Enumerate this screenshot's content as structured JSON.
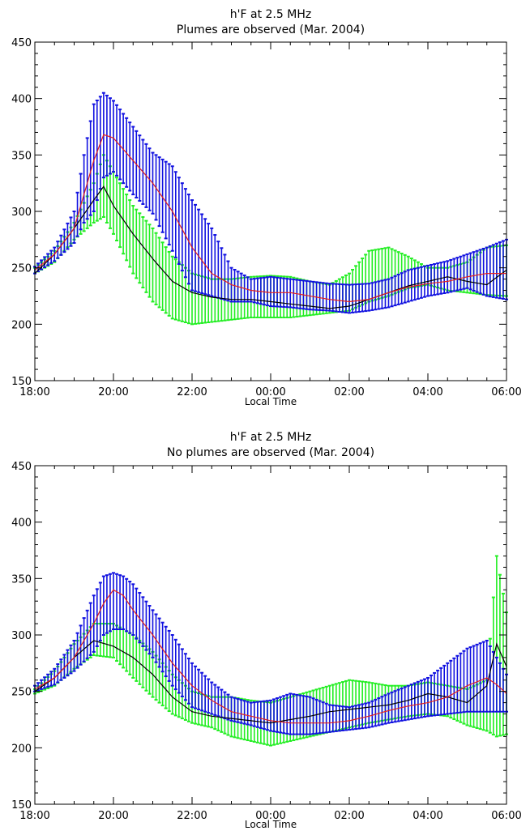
{
  "chart_data": [
    {
      "type": "line",
      "title": "h'F at 2.5 MHz",
      "subtitle": "Plumes are observed (Mar. 2004)",
      "xlabel": "Local Time",
      "ylabel": "",
      "x_ticks": [
        "18:00",
        "20:00",
        "22:00",
        "00:00",
        "02:00",
        "04:00",
        "06:00"
      ],
      "x_range_hours": [
        18,
        30
      ],
      "ylim": [
        150,
        450
      ],
      "y_ticks": [
        150,
        200,
        250,
        300,
        350,
        400,
        450
      ],
      "grid": false,
      "legend": "none",
      "colors": {
        "blue_band": "#1010e0",
        "green_band": "#22ee22",
        "red_line": "#e02020",
        "black_line": "#000000"
      },
      "series": [
        {
          "style": "red-line",
          "x": [
            18,
            18.5,
            19,
            19.25,
            19.5,
            19.75,
            20,
            20.5,
            21,
            21.5,
            22,
            22.5,
            23,
            23.5,
            24,
            24.5,
            25,
            25.5,
            26,
            26.5,
            27,
            27.5,
            28,
            28.5,
            29,
            29.5,
            30
          ],
          "values": [
            248,
            262,
            285,
            315,
            345,
            368,
            365,
            345,
            325,
            300,
            268,
            245,
            235,
            230,
            228,
            228,
            225,
            222,
            220,
            222,
            228,
            233,
            236,
            238,
            242,
            245,
            245
          ],
          "err_high": [
            251,
            268,
            300,
            350,
            395,
            405,
            398,
            375,
            352,
            340,
            310,
            285,
            250,
            240,
            242,
            240,
            238,
            236,
            235,
            236,
            240,
            248,
            252,
            256,
            262,
            268,
            275
          ],
          "err_low": [
            245,
            256,
            272,
            290,
            300,
            330,
            335,
            315,
            298,
            265,
            230,
            225,
            220,
            220,
            216,
            215,
            213,
            212,
            210,
            212,
            215,
            220,
            225,
            228,
            232,
            225,
            222
          ]
        },
        {
          "style": "black-line",
          "x": [
            18,
            18.5,
            19,
            19.5,
            19.75,
            20,
            20.5,
            21,
            21.5,
            22,
            22.5,
            23,
            23.5,
            24,
            24.5,
            25,
            25.5,
            26,
            26.5,
            27,
            27.5,
            28,
            28.5,
            29,
            29.5,
            30
          ],
          "values": [
            245,
            262,
            285,
            310,
            322,
            305,
            280,
            258,
            238,
            228,
            224,
            222,
            222,
            220,
            218,
            216,
            214,
            216,
            222,
            228,
            234,
            238,
            242,
            238,
            235,
            248
          ],
          "err_high": [
            250,
            265,
            290,
            325,
            350,
            335,
            305,
            285,
            260,
            245,
            240,
            240,
            242,
            243,
            242,
            238,
            235,
            245,
            265,
            268,
            260,
            250,
            250,
            255,
            268,
            270
          ],
          "err_low": [
            245,
            255,
            275,
            290,
            295,
            280,
            245,
            220,
            205,
            200,
            202,
            204,
            206,
            206,
            206,
            208,
            210,
            212,
            220,
            225,
            232,
            235,
            230,
            228,
            226,
            225
          ]
        }
      ]
    },
    {
      "type": "line",
      "title": "h'F at 2.5 MHz",
      "subtitle": "No plumes are observed (Mar. 2004)",
      "xlabel": "Local Time",
      "ylabel": "",
      "x_ticks": [
        "18:00",
        "20:00",
        "22:00",
        "00:00",
        "02:00",
        "04:00",
        "06:00"
      ],
      "x_range_hours": [
        18,
        30
      ],
      "ylim": [
        150,
        450
      ],
      "y_ticks": [
        150,
        200,
        250,
        300,
        350,
        400,
        450
      ],
      "grid": false,
      "legend": "none",
      "colors": {
        "blue_band": "#1010e0",
        "green_band": "#22ee22",
        "red_line": "#e02020",
        "black_line": "#000000"
      },
      "series": [
        {
          "style": "red-line",
          "x": [
            18,
            18.5,
            19,
            19.5,
            19.75,
            20,
            20.25,
            20.5,
            21,
            21.5,
            22,
            22.5,
            23,
            23.5,
            24,
            24.5,
            25,
            25.5,
            26,
            26.5,
            27,
            27.5,
            28,
            28.5,
            29,
            29.5,
            29.75,
            30
          ],
          "values": [
            252,
            262,
            280,
            310,
            328,
            340,
            335,
            322,
            300,
            275,
            255,
            242,
            232,
            228,
            224,
            222,
            222,
            222,
            224,
            228,
            233,
            237,
            240,
            245,
            255,
            262,
            256,
            248
          ],
          "err_high": [
            255,
            270,
            295,
            335,
            352,
            355,
            352,
            345,
            322,
            300,
            275,
            258,
            245,
            240,
            242,
            248,
            245,
            238,
            236,
            240,
            248,
            255,
            262,
            275,
            288,
            295,
            280,
            265
          ],
          "err_low": [
            250,
            256,
            268,
            285,
            300,
            305,
            305,
            300,
            280,
            255,
            236,
            230,
            224,
            220,
            215,
            212,
            212,
            214,
            216,
            218,
            222,
            225,
            228,
            230,
            232,
            232,
            232,
            232
          ]
        },
        {
          "style": "black-line",
          "x": [
            18,
            18.5,
            19,
            19.5,
            20,
            20.5,
            21,
            21.5,
            22,
            22.5,
            23,
            23.5,
            24,
            24.5,
            25,
            25.5,
            26,
            26.5,
            27,
            27.5,
            28,
            28.5,
            29,
            29.5,
            29.75,
            30
          ],
          "values": [
            250,
            262,
            280,
            295,
            290,
            280,
            265,
            245,
            232,
            228,
            226,
            224,
            222,
            225,
            228,
            232,
            234,
            236,
            238,
            242,
            248,
            245,
            240,
            255,
            292,
            272
          ],
          "err_high": [
            252,
            268,
            292,
            310,
            310,
            300,
            285,
            265,
            250,
            245,
            245,
            242,
            240,
            245,
            250,
            255,
            260,
            258,
            255,
            255,
            258,
            255,
            252,
            260,
            370,
            320
          ],
          "err_low": [
            248,
            255,
            270,
            282,
            280,
            262,
            245,
            230,
            222,
            218,
            210,
            206,
            202,
            206,
            210,
            214,
            218,
            222,
            225,
            228,
            230,
            228,
            220,
            215,
            210,
            212
          ]
        }
      ]
    }
  ]
}
